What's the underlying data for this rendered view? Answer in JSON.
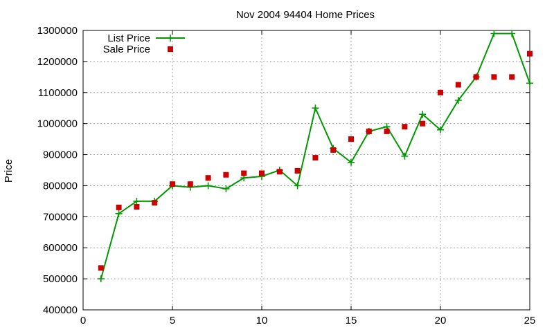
{
  "chart_data": {
    "type": "line",
    "title": "Nov 2004 94404 Home Prices",
    "xlabel": "",
    "ylabel": "Price",
    "xlim": [
      0,
      25
    ],
    "ylim": [
      400000,
      1300000
    ],
    "xticks": [
      0,
      5,
      10,
      15,
      20,
      25
    ],
    "yticks": [
      400000,
      500000,
      600000,
      700000,
      800000,
      900000,
      1000000,
      1100000,
      1200000,
      1300000
    ],
    "grid": true,
    "legend_position": "top-left",
    "series": [
      {
        "name": "List Price",
        "style": "linespoints",
        "color": "#009900",
        "marker": "plus",
        "x": [
          1,
          2,
          3,
          4,
          5,
          6,
          7,
          8,
          9,
          10,
          11,
          12,
          13,
          14,
          15,
          16,
          17,
          18,
          19,
          20,
          21,
          22,
          23,
          24,
          25
        ],
        "y": [
          500000,
          710000,
          750000,
          750000,
          800000,
          795000,
          800000,
          790000,
          825000,
          830000,
          850000,
          800000,
          1050000,
          920000,
          875000,
          975000,
          990000,
          895000,
          1030000,
          980000,
          1075000,
          1150000,
          1290000,
          1290000,
          1130000
        ]
      },
      {
        "name": "Sale Price",
        "style": "points",
        "color": "#cc0000",
        "marker": "square",
        "x": [
          1,
          2,
          3,
          4,
          5,
          6,
          7,
          8,
          9,
          10,
          11,
          12,
          13,
          14,
          15,
          16,
          17,
          18,
          19,
          20,
          21,
          22,
          23,
          24,
          25
        ],
        "y": [
          535000,
          730000,
          732000,
          745000,
          805000,
          805000,
          825000,
          835000,
          840000,
          840000,
          845000,
          848000,
          890000,
          915000,
          950000,
          975000,
          975000,
          990000,
          1000000,
          1100000,
          1125000,
          1150000,
          1150000,
          1150000,
          1225000
        ]
      }
    ]
  }
}
